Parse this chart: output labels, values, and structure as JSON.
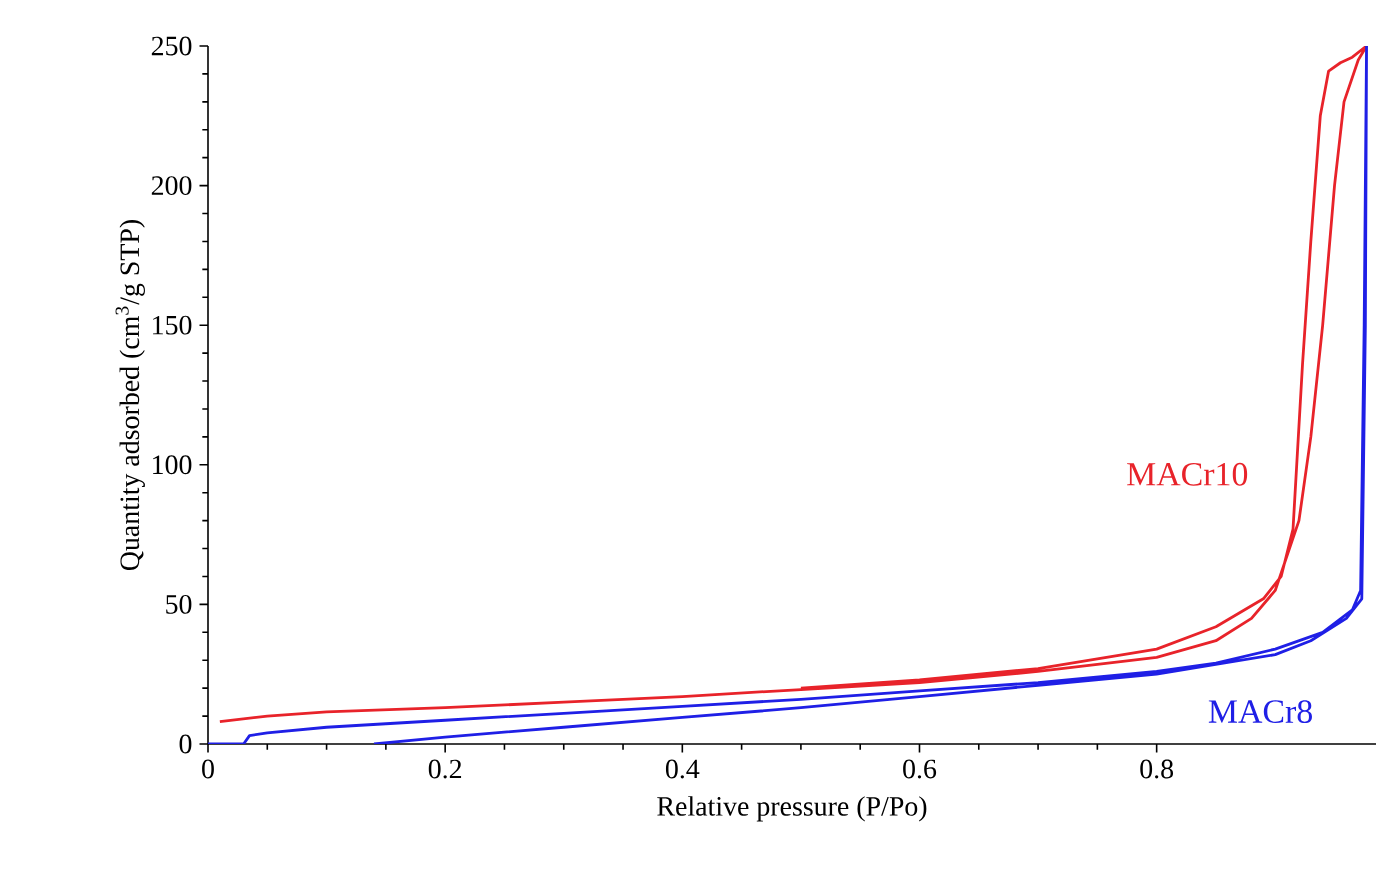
{
  "chart_data": {
    "type": "line",
    "xlabel": "Relative pressure (P/Po)",
    "ylabel": "Quantity adsorbed (cm$^{3}$/g STP)",
    "xlim": [
      0,
      0.985
    ],
    "ylim": [
      0,
      250
    ],
    "xticks": [
      0,
      0.2,
      0.4,
      0.6,
      0.8
    ],
    "yticks": [
      0,
      50,
      100,
      150,
      200,
      250
    ],
    "grid": false,
    "legend": false,
    "marker": "none",
    "line_style": "solid",
    "series": [
      {
        "name": "MACr10",
        "color": "#e8232a",
        "x": [
          0.01,
          0.05,
          0.1,
          0.2,
          0.3,
          0.4,
          0.5,
          0.6,
          0.7,
          0.8,
          0.85,
          0.88,
          0.9,
          0.92,
          0.93,
          0.94,
          0.95,
          0.958,
          0.97,
          0.977,
          0.965,
          0.955,
          0.945,
          0.938,
          0.93,
          0.923,
          0.915,
          0.905,
          0.89,
          0.87,
          0.85,
          0.8,
          0.7,
          0.6,
          0.5
        ],
        "values": [
          8,
          10,
          11.5,
          13,
          15,
          17,
          19.5,
          22,
          26,
          31,
          37,
          45,
          55,
          80,
          110,
          150,
          200,
          230,
          245,
          250,
          246,
          244,
          241,
          225,
          180,
          136,
          77,
          60,
          52,
          47,
          42,
          34,
          27,
          23,
          20
        ]
      },
      {
        "name": "MACr8",
        "color": "#1f1fe6",
        "x": [
          0,
          0.03,
          0.035,
          0.05,
          0.1,
          0.2,
          0.3,
          0.4,
          0.5,
          0.6,
          0.7,
          0.8,
          0.85,
          0.9,
          0.94,
          0.965,
          0.972,
          0.975,
          0.977,
          0.976,
          0.973,
          0.96,
          0.93,
          0.9,
          0.8,
          0.7,
          0.6,
          0.5,
          0.4,
          0.3,
          0.2,
          0.14
        ],
        "values": [
          0,
          0,
          3,
          4,
          6,
          8.5,
          11,
          13.5,
          16,
          19,
          22,
          26,
          29,
          34,
          40,
          48,
          55,
          150,
          250,
          150,
          52,
          45,
          37,
          32,
          25,
          21,
          17,
          13,
          9.5,
          6,
          2.5,
          0
        ]
      }
    ]
  }
}
